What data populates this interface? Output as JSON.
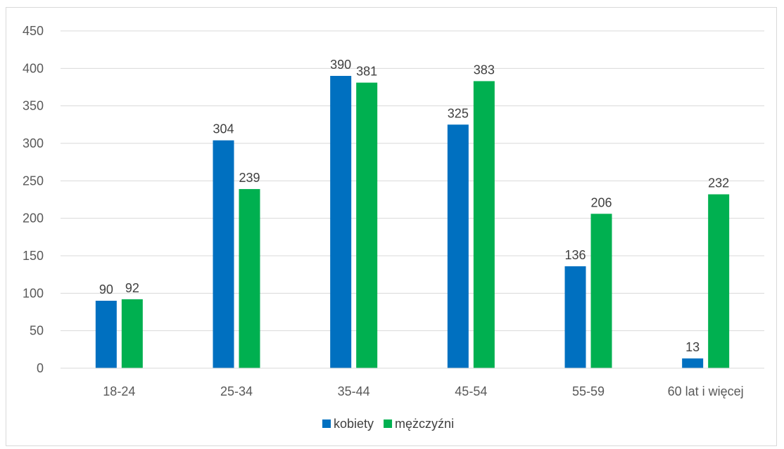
{
  "chart_data": {
    "type": "bar",
    "categories": [
      "18-24",
      "25-34",
      "35-44",
      "45-54",
      "55-59",
      "60 lat i więcej"
    ],
    "series": [
      {
        "name": "kobiety",
        "color": "#0070C0",
        "values": [
          90,
          304,
          390,
          325,
          136,
          13
        ]
      },
      {
        "name": "mężczyźni",
        "color": "#00B050",
        "values": [
          92,
          239,
          381,
          383,
          206,
          232
        ]
      }
    ],
    "y_ticks": [
      0,
      50,
      100,
      150,
      200,
      250,
      300,
      350,
      400,
      450
    ],
    "ylim": [
      0,
      450
    ],
    "grid": true,
    "legend_position": "bottom",
    "data_labels": true
  }
}
